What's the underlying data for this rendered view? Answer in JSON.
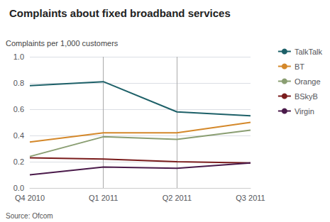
{
  "chart_data": {
    "type": "line",
    "title": "Complaints about fixed broadband services",
    "ylabel": "Complaints per 1,000 customers",
    "source": "Source: Ofcom",
    "categories": [
      "Q4 2010",
      "Q1 2011",
      "Q2 2011",
      "Q3 2011"
    ],
    "series": [
      {
        "name": "TalkTalk",
        "color": "#1d6068",
        "values": [
          0.78,
          0.81,
          0.58,
          0.55
        ]
      },
      {
        "name": "BT",
        "color": "#d4882a",
        "values": [
          0.35,
          0.42,
          0.42,
          0.5
        ]
      },
      {
        "name": "Orange",
        "color": "#8a9e72",
        "values": [
          0.24,
          0.39,
          0.37,
          0.44
        ]
      },
      {
        "name": "BSkyB",
        "color": "#7a1c1c",
        "values": [
          0.23,
          0.22,
          0.2,
          0.19
        ]
      },
      {
        "name": "Virgin",
        "color": "#4a1a4a",
        "values": [
          0.1,
          0.16,
          0.15,
          0.19
        ]
      }
    ],
    "vlines": [
      "Q1 2011",
      "Q2 2011"
    ],
    "ylim": [
      0.0,
      1.0
    ],
    "yticks": [
      {
        "value": 0.0,
        "label": "0.0"
      },
      0.2,
      0.4,
      0.6,
      0.8,
      {
        "value": 1.0,
        "label": "1.0"
      }
    ],
    "grid": true,
    "legend": "right"
  }
}
